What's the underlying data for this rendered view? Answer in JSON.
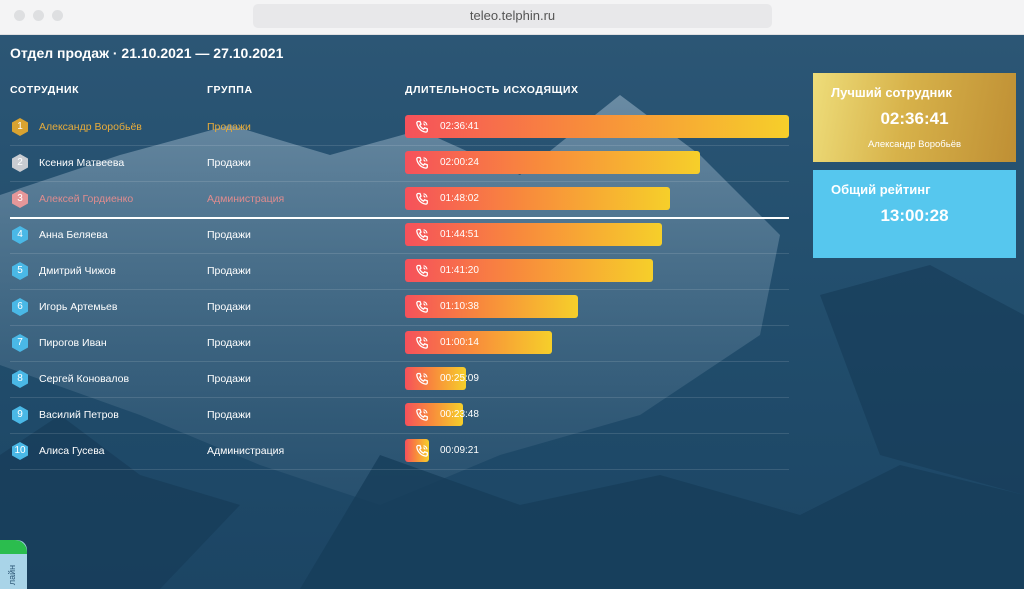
{
  "browser": {
    "url": "teleo.telphin.ru"
  },
  "dashboard": {
    "title": "Отдел продаж · 21.10.2021 — 27.10.2021",
    "columns": {
      "employee": "СОТРУДНИК",
      "group": "ГРУППА",
      "duration": "ДЛИТЕЛЬНОСТЬ ИСХОДЯЩИХ"
    },
    "rows": [
      {
        "rank": "1",
        "name": "Александр Воробьёв",
        "group": "Продажи",
        "duration": "02:36:41",
        "fraction": 1.0
      },
      {
        "rank": "2",
        "name": "Ксения Матвеева",
        "group": "Продажи",
        "duration": "02:00:24",
        "fraction": 0.767
      },
      {
        "rank": "3",
        "name": "Алексей Гордиенко",
        "group": "Администрация",
        "duration": "01:48:02",
        "fraction": 0.689
      },
      {
        "rank": "4",
        "name": "Анна Беляева",
        "group": "Продажи",
        "duration": "01:44:51",
        "fraction": 0.669
      },
      {
        "rank": "5",
        "name": "Дмитрий Чижов",
        "group": "Продажи",
        "duration": "01:41:20",
        "fraction": 0.647
      },
      {
        "rank": "6",
        "name": "Игорь Артемьев",
        "group": "Продажи",
        "duration": "01:10:38",
        "fraction": 0.451
      },
      {
        "rank": "7",
        "name": "Пирогов Иван",
        "group": "Продажи",
        "duration": "01:00:14",
        "fraction": 0.384
      },
      {
        "rank": "8",
        "name": "Сергей Коновалов",
        "group": "Продажи",
        "duration": "00:25:09",
        "fraction": 0.16
      },
      {
        "rank": "9",
        "name": "Василий Петров",
        "group": "Продажи",
        "duration": "00:23:48",
        "fraction": 0.152
      },
      {
        "rank": "10",
        "name": "Алиса Гусева",
        "group": "Администрация",
        "duration": "00:09:21",
        "fraction": 0.06
      }
    ]
  },
  "best_card": {
    "title": "Лучший сотрудник",
    "value": "02:36:41",
    "name": "Александр Воробьёв"
  },
  "rating_card": {
    "title": "Общий рейтинг",
    "value": "13:00:28"
  },
  "online_tab": {
    "label": "лайн"
  },
  "colors": {
    "gold_text": "#e8ac3a",
    "bronze_text": "#e08c8e",
    "rank_default": "#4ab8e6",
    "rank_gold": "#d9a331",
    "rank_silver": "#c9ccd1",
    "rank_bronze": "#e69799",
    "bar_start": "#f6515b",
    "bar_end": "#f6cf2a",
    "rating_card": "#56c7ee"
  }
}
